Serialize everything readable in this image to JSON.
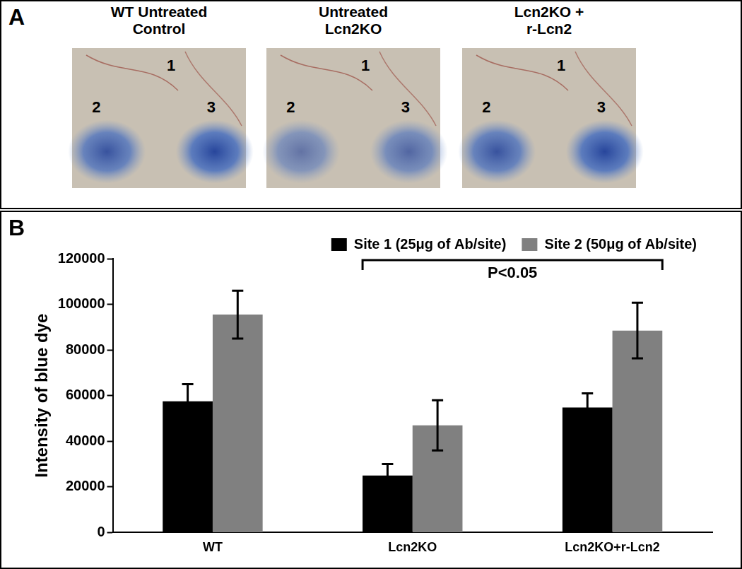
{
  "panel_a": {
    "label": "A",
    "images": [
      {
        "title": [
          "WT Untreated",
          "Control"
        ],
        "sites": [
          1,
          2,
          3
        ]
      },
      {
        "title": [
          "Untreated",
          "Lcn2KO"
        ],
        "sites": [
          1,
          2,
          3
        ]
      },
      {
        "title": [
          "Lcn2KO +",
          "r-Lcn2"
        ],
        "sites": [
          1,
          2,
          3
        ]
      }
    ]
  },
  "panel_b_label": "B",
  "chart_data": {
    "type": "bar",
    "ylabel": "Intensity of blue dye",
    "categories": [
      "WT",
      "Lcn2KO",
      "Lcn2KO+r-Lcn2"
    ],
    "series": [
      {
        "name": "Site 1 (25μg of Ab/site)",
        "color": "#000000",
        "values": [
          57500,
          25000,
          54800
        ],
        "errors": [
          7500,
          5000,
          6200
        ]
      },
      {
        "name": "Site 2 (50μg of Ab/site)",
        "color": "#808080",
        "values": [
          95500,
          47000,
          88500
        ],
        "errors": [
          10500,
          11000,
          12200
        ]
      }
    ],
    "ylim": [
      0,
      120000
    ],
    "yticks": [
      0,
      20000,
      40000,
      60000,
      80000,
      100000,
      120000
    ],
    "grid": false,
    "legend": "top-right",
    "annotations": [
      {
        "text": "P<0.05",
        "from": "Lcn2KO",
        "to": "Lcn2KO+r-Lcn2"
      }
    ]
  }
}
